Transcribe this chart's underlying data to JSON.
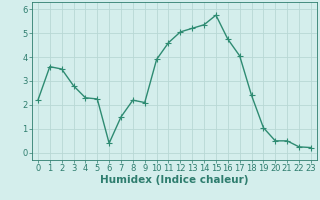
{
  "x": [
    0,
    1,
    2,
    3,
    4,
    5,
    6,
    7,
    8,
    9,
    10,
    11,
    12,
    13,
    14,
    15,
    16,
    17,
    18,
    19,
    20,
    21,
    22,
    23
  ],
  "y": [
    2.2,
    3.6,
    3.5,
    2.8,
    2.3,
    2.25,
    0.4,
    1.5,
    2.2,
    2.1,
    3.9,
    4.6,
    5.05,
    5.2,
    5.35,
    5.75,
    4.75,
    4.05,
    2.4,
    1.05,
    0.5,
    0.5,
    0.25,
    0.22
  ],
  "line_color": "#2e8b72",
  "marker": "+",
  "marker_size": 4,
  "linewidth": 1.0,
  "xlabel": "Humidex (Indice chaleur)",
  "xlim": [
    -0.5,
    23.5
  ],
  "ylim": [
    -0.3,
    6.3
  ],
  "yticks": [
    0,
    1,
    2,
    3,
    4,
    5,
    6
  ],
  "xticks": [
    0,
    1,
    2,
    3,
    4,
    5,
    6,
    7,
    8,
    9,
    10,
    11,
    12,
    13,
    14,
    15,
    16,
    17,
    18,
    19,
    20,
    21,
    22,
    23
  ],
  "bg_color": "#d4eeec",
  "grid_color": "#b8d8d5",
  "tick_color": "#2e7d6e",
  "label_color": "#2e7d6e",
  "xlabel_fontsize": 7.5,
  "tick_fontsize": 6
}
